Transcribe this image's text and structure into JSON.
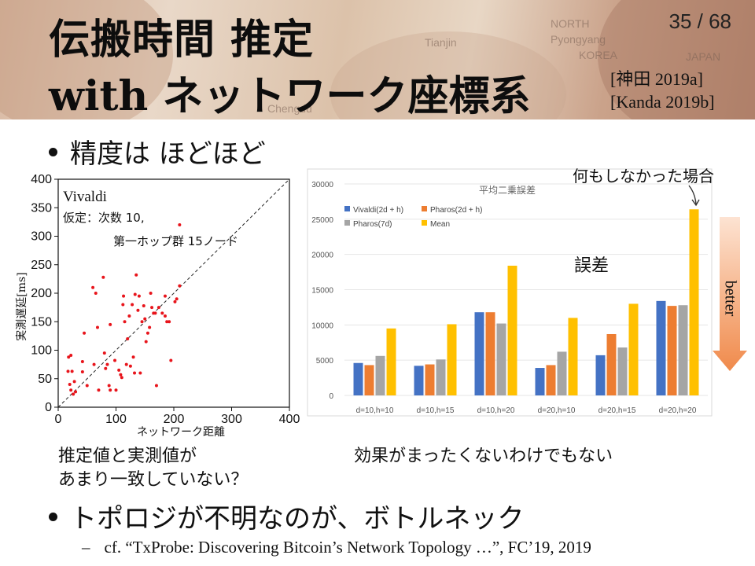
{
  "header": {
    "title_line1": "伝搬時間 推定",
    "title_line2_en": "with",
    "title_line2_ja": "ネットワーク座標系",
    "page_number": "35 / 68",
    "references": [
      "[神田 2019a]",
      "[Kanda 2019b]"
    ],
    "background_map_words": [
      "NORTH",
      "Pyongyang",
      "KOREA",
      "Tianjin",
      "JAPAN",
      "Chengdu"
    ]
  },
  "bullets": [
    "精度は ほどほど",
    "トポロジが不明なのが、ボトルネック"
  ],
  "sub_bullet": {
    "marker": "–",
    "text": "cf. “TxProbe: Discovering Bitcoin’s Network Topology …”, FC’19, 2019"
  },
  "captions": {
    "left": [
      "推定値と実測値が",
      "あまり一致していない？"
    ],
    "right": "効果がまったくないわけでもない"
  },
  "colors": {
    "scatter_points": "#e8141b",
    "vivaldi": "#4472c4",
    "pharos_2d": "#ed7d31",
    "pharos_7d": "#a5a5a5",
    "mean": "#ffc000",
    "better_arrow": "#f4a06c"
  },
  "chart_data": [
    {
      "type": "scatter",
      "title": "Vivaldi",
      "annotation_lines": [
        "仮定：次数 10,",
        "第一ホップ群 15ノード"
      ],
      "xlabel": "ネットワーク距離",
      "ylabel": "実測遅延[ms]",
      "xlim": [
        0,
        400
      ],
      "ylim": [
        0,
        400
      ],
      "xticks": [
        0,
        100,
        200,
        300,
        400
      ],
      "yticks": [
        0,
        50,
        100,
        150,
        200,
        250,
        300,
        350,
        400
      ],
      "reference_line": "y = x (dashed)",
      "points": [
        [
          17,
          63
        ],
        [
          18,
          88
        ],
        [
          20,
          40
        ],
        [
          22,
          30
        ],
        [
          22,
          91
        ],
        [
          24,
          63
        ],
        [
          26,
          23
        ],
        [
          28,
          45
        ],
        [
          30,
          27
        ],
        [
          42,
          80
        ],
        [
          42,
          62
        ],
        [
          45,
          130
        ],
        [
          50,
          38
        ],
        [
          60,
          210
        ],
        [
          62,
          75
        ],
        [
          65,
          200
        ],
        [
          68,
          140
        ],
        [
          70,
          30
        ],
        [
          78,
          228
        ],
        [
          80,
          95
        ],
        [
          82,
          68
        ],
        [
          85,
          75
        ],
        [
          88,
          38
        ],
        [
          90,
          145
        ],
        [
          90,
          30
        ],
        [
          98,
          82
        ],
        [
          100,
          30
        ],
        [
          105,
          65
        ],
        [
          108,
          57
        ],
        [
          110,
          52
        ],
        [
          112,
          180
        ],
        [
          113,
          195
        ],
        [
          115,
          150
        ],
        [
          118,
          75
        ],
        [
          120,
          120
        ],
        [
          123,
          160
        ],
        [
          125,
          72
        ],
        [
          128,
          180
        ],
        [
          130,
          88
        ],
        [
          132,
          60
        ],
        [
          133,
          198
        ],
        [
          135,
          232
        ],
        [
          138,
          170
        ],
        [
          140,
          195
        ],
        [
          142,
          60
        ],
        [
          145,
          150
        ],
        [
          148,
          178
        ],
        [
          150,
          155
        ],
        [
          152,
          115
        ],
        [
          155,
          130
        ],
        [
          158,
          140
        ],
        [
          160,
          200
        ],
        [
          162,
          175
        ],
        [
          165,
          165
        ],
        [
          168,
          165
        ],
        [
          170,
          38
        ],
        [
          174,
          175
        ],
        [
          180,
          165
        ],
        [
          185,
          195
        ],
        [
          188,
          150
        ],
        [
          192,
          150
        ],
        [
          195,
          82
        ],
        [
          202,
          185
        ],
        [
          210,
          213
        ],
        [
          205,
          190
        ],
        [
          185,
          160
        ]
      ],
      "label_point": [
        210,
        320
      ]
    },
    {
      "type": "bar",
      "title": "平均二乗誤差",
      "categories": [
        "d=10,h=10",
        "d=10,h=15",
        "d=10,h=20",
        "d=20,h=10",
        "d=20,h=15",
        "d=20,h=20"
      ],
      "series": [
        {
          "name": "Vivaldi(2d + h)",
          "values": [
            4600,
            4200,
            11800,
            3900,
            5700,
            13400
          ]
        },
        {
          "name": "Pharos(2d + h)",
          "values": [
            4300,
            4400,
            11800,
            4300,
            8700,
            12700
          ]
        },
        {
          "name": "Pharos(7d)",
          "values": [
            5600,
            5100,
            10200,
            6200,
            6800,
            12800
          ]
        },
        {
          "name": "Mean",
          "values": [
            9500,
            10100,
            18400,
            11000,
            13000,
            26400
          ]
        }
      ],
      "ylim": [
        0,
        30000
      ],
      "yticks": [
        0,
        5000,
        10000,
        15000,
        20000,
        25000,
        30000
      ],
      "legend_position": "top-left",
      "annotations": {
        "top_note": "何もしなかった場合",
        "error_label": "誤差",
        "better_label": "better"
      }
    }
  ]
}
